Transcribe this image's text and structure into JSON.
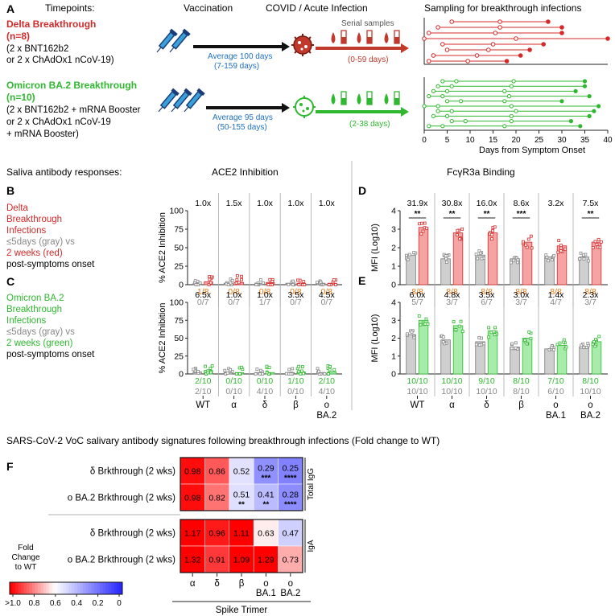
{
  "panel_letters": {
    "A": "A",
    "B": "B",
    "C": "C",
    "D": "D",
    "E": "E",
    "F": "F"
  },
  "panelA": {
    "timepoints": "Timepoints:",
    "vaccination": "Vaccination",
    "infection": "COVID / Acute Infection",
    "serial": "Serial samples",
    "sampling": "Sampling for breakthrough infections",
    "delta": {
      "title1": "Delta Breakthrough",
      "title2": "(n=8)",
      "line1": "(2 x BNT162b2",
      "line2": "or 2 x ChAdOx1 nCoV-19)",
      "avg": "Average 100 days",
      "range": "(7-159 days)",
      "window": "(0-59 days)"
    },
    "omicron": {
      "title1": "Omicron BA.2 Breakthrough",
      "title2": "(n=10)",
      "line1": "(2 x BNT162b2 + mRNA Booster",
      "line2": "or 2 x ChAdOx1 nCoV-19",
      "line3": "+ mRNA Booster)",
      "avg": "Average 95 days",
      "range": "(50-155 days)",
      "window": "(2-38 days)"
    },
    "xaxis": {
      "label": "Days from Symptom Onset",
      "ticks": [
        "0",
        "5",
        "10",
        "15",
        "20",
        "25",
        "30",
        "35",
        "40"
      ]
    }
  },
  "row_titles": {
    "saliva": "Saliva antibody responses:",
    "ace2": "ACE2 Inhibition",
    "fcr": "FcγR3a Binding"
  },
  "panelB": {
    "lines": [
      "Delta",
      "Breakthrough",
      "Infections"
    ],
    "gray": "≤5days (gray) vs",
    "red": "2 weeks (red)",
    "tail": "post-symptoms onset"
  },
  "panelC": {
    "lines": [
      "Omicron BA.2",
      "Breakthrough",
      "Infections"
    ],
    "gray": "≤5days (gray) vs",
    "green": "2 weeks (green)",
    "tail": "post-symptoms onset"
  },
  "chart_data": [
    {
      "id": "B",
      "type": "bar",
      "ylabel": "% ACE2 Inhibition",
      "ylim": [
        0,
        100
      ],
      "yticks": [
        "0",
        "25",
        "50",
        "75",
        "100"
      ],
      "folds": [
        "1.0x",
        "1.5x",
        "1.0x",
        "1.0x",
        "1.0x"
      ],
      "top_counts": [
        "1/8",
        "0/8",
        "0/8",
        "0/8",
        "0/8"
      ],
      "bottom_counts": [
        "0/7",
        "0/7",
        "1/7",
        "0/7",
        "0/7"
      ],
      "gray_means": [
        2,
        2,
        2,
        2,
        2
      ],
      "color_means": [
        4,
        3,
        3,
        2,
        2
      ]
    },
    {
      "id": "C",
      "type": "bar",
      "ylabel": "% ACE2 Inhibition",
      "ylim": [
        0,
        100
      ],
      "yticks": [
        "0",
        "25",
        "50",
        "75",
        "100"
      ],
      "categories": [
        "WT",
        "α",
        "δ",
        "β",
        "o BA.2"
      ],
      "folds": [
        "6.5x",
        "1.0x",
        "1.0x",
        "3.5x",
        "4.5x"
      ],
      "top_counts": [
        "2/10",
        "0/10",
        "0/10",
        "1/10",
        "2/10"
      ],
      "bottom_counts": [
        "2/10",
        "0/10",
        "4/10",
        "0/10",
        "4/10"
      ],
      "gray_means": [
        3,
        2,
        2,
        2,
        2
      ],
      "color_means": [
        5,
        2,
        2,
        3,
        3
      ]
    },
    {
      "id": "D",
      "type": "bar",
      "ylabel": "MFI (Log10)",
      "ylim": [
        0,
        4
      ],
      "yticks": [
        "0",
        "1",
        "2",
        "3",
        "4"
      ],
      "folds": [
        "31.9x",
        "30.8x",
        "16.0x",
        "8.6x",
        "3.2x",
        "7.5x"
      ],
      "sig": [
        "**",
        "**",
        "**",
        "***",
        "",
        "**"
      ],
      "top_counts": [
        "8/8",
        "8/8",
        "8/8",
        "8/8",
        "8/8",
        "8/8"
      ],
      "bottom_counts": [
        "5/7",
        "3/7",
        "6/7",
        "3/7",
        "4/7",
        "3/7"
      ],
      "gray_means": [
        1.6,
        1.4,
        1.6,
        1.4,
        1.5,
        1.5
      ],
      "color_means": [
        3.1,
        2.8,
        2.8,
        2.3,
        2.1,
        2.3
      ]
    },
    {
      "id": "E",
      "type": "bar",
      "ylabel": "MFI (Log10)",
      "ylim": [
        0,
        4
      ],
      "yticks": [
        "0",
        "1",
        "2",
        "3",
        "4"
      ],
      "categories": [
        "WT",
        "α",
        "δ",
        "β",
        "o BA.1",
        "o BA.2"
      ],
      "folds": [
        "6.0x",
        "4.8x",
        "3.5x",
        "3.0x",
        "1.4x",
        "2.3x"
      ],
      "top_counts": [
        "10/10",
        "10/10",
        "9/10",
        "8/10",
        "7/10",
        "8/10"
      ],
      "bottom_counts": [
        "10/10",
        "10/10",
        "10/10",
        "8/10",
        "6/10",
        "10/10"
      ],
      "gray_means": [
        2.2,
        1.9,
        1.8,
        1.5,
        1.4,
        1.5
      ],
      "color_means": [
        3.0,
        2.7,
        2.4,
        2.0,
        1.6,
        1.8
      ]
    },
    {
      "id": "F",
      "type": "heatmap",
      "columns": [
        "α",
        "δ",
        "β",
        "o BA.1",
        "o BA.2"
      ],
      "rows": [
        "δ Brkthrough (2 wks)",
        "o BA.2 Brkthrough (2 wks)",
        "δ Brkthrough (2 wks)",
        "o BA.2 Brkthrough (2 wks)"
      ],
      "groups": [
        "Total IgG",
        "IgA"
      ],
      "values": [
        [
          0.98,
          0.86,
          0.52,
          0.29,
          0.25
        ],
        [
          0.98,
          0.82,
          0.51,
          0.41,
          0.28
        ],
        [
          1.17,
          0.96,
          1.11,
          0.63,
          0.47
        ],
        [
          1.32,
          0.91,
          1.09,
          1.29,
          0.73
        ]
      ],
      "labels": [
        [
          "0.98",
          "0.86",
          "0.52",
          "0.29",
          "0.25"
        ],
        [
          "0.98",
          "0.82",
          "0.51",
          "0.41",
          "0.28"
        ],
        [
          "1.17",
          "0.96",
          "1.11",
          "0.63",
          "0.47"
        ],
        [
          "1.32",
          "0.91",
          "1.09",
          "1.29",
          "0.73"
        ]
      ],
      "sig": [
        [
          "",
          "",
          "",
          "***",
          "****"
        ],
        [
          "",
          "",
          "**",
          "**",
          "****"
        ],
        [
          "",
          "",
          "",
          "",
          ""
        ],
        [
          "",
          "",
          "",
          "",
          ""
        ]
      ],
      "xlabel": "Spike Trimer",
      "legend": {
        "title": [
          "Fold",
          "Change",
          "to WT"
        ],
        "ticks": [
          ">1.0",
          "0.8",
          "0.6",
          "0.4",
          "0.2",
          "0"
        ]
      }
    }
  ],
  "f_title": "SARS-CoV-2 VoC salivary antibody signatures following breakthrough infections (Fold change to WT)",
  "colors": {
    "delta": "#d42a2a",
    "omicron": "#2fb82f",
    "blue": "#1f6fc0",
    "gray": "#888888",
    "orange": "#e07b1a"
  }
}
